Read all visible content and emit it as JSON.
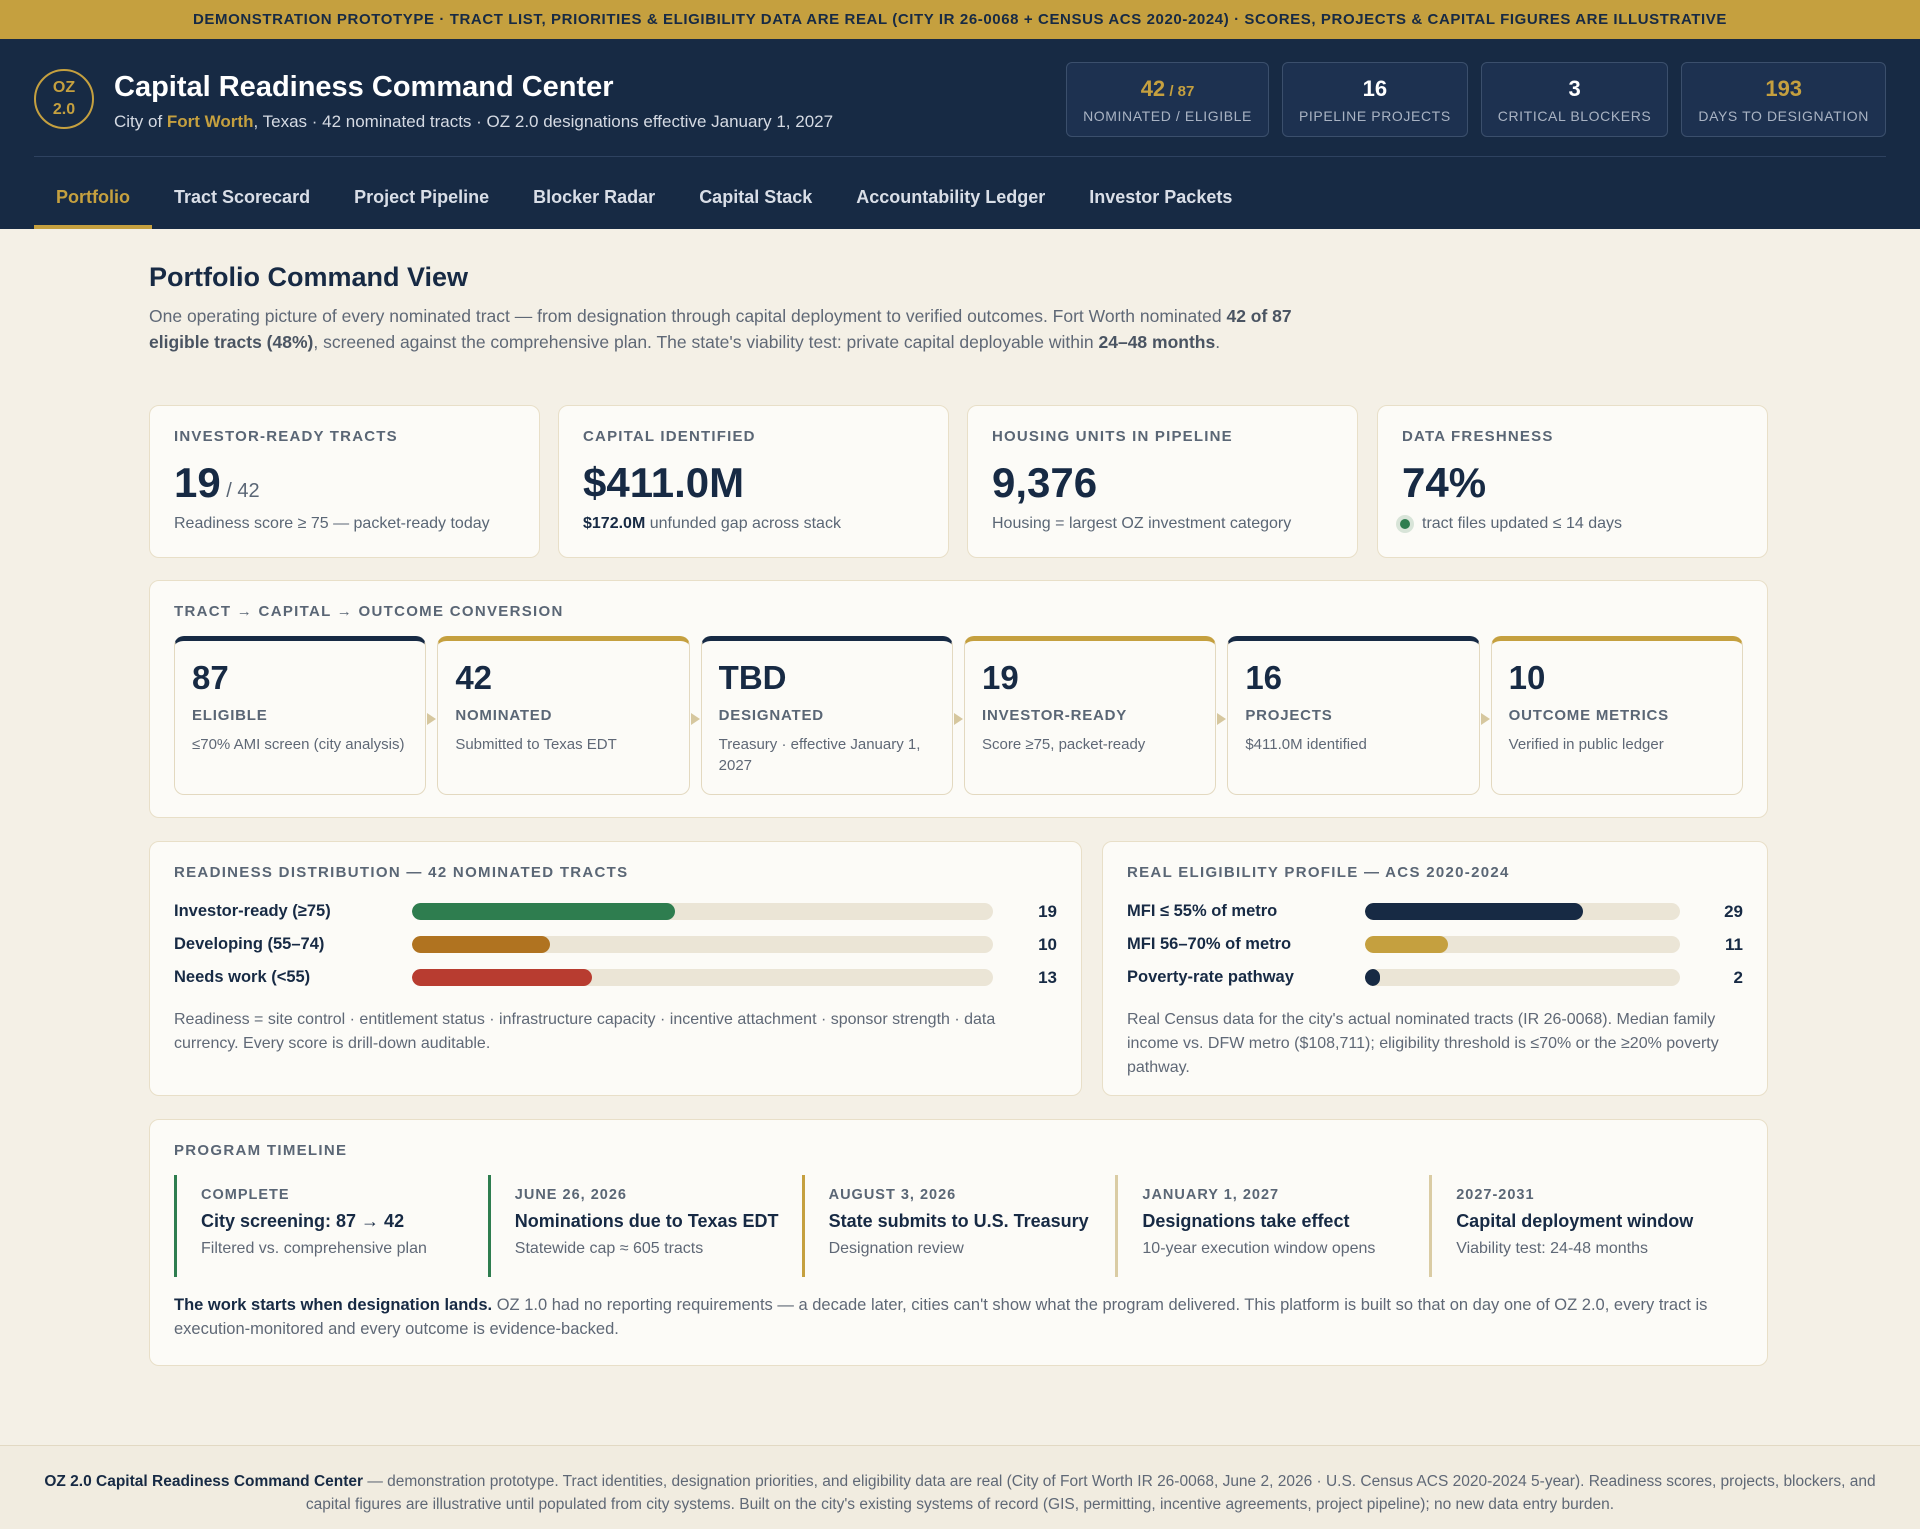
{
  "banner": "DEMONSTRATION PROTOTYPE · TRACT LIST, PRIORITIES & ELIGIBILITY DATA ARE REAL (CITY IR 26-0068 + CENSUS ACS 2020-2024) · SCORES, PROJECTS & CAPITAL FIGURES ARE ILLUSTRATIVE",
  "header": {
    "logo_line1": "OZ",
    "logo_line2": "2.0",
    "title": "Capital Readiness Command Center",
    "subtitle_prefix": "City of ",
    "subtitle_city": "Fort Worth",
    "subtitle_suffix": ", Texas · 42 nominated tracts · OZ 2.0 designations effective January 1, 2027",
    "stats": [
      {
        "value": "42",
        "suffix": " / 87",
        "label": "NOMINATED / ELIGIBLE"
      },
      {
        "value": "16",
        "label": "PIPELINE PROJECTS"
      },
      {
        "value": "3",
        "label": "CRITICAL BLOCKERS"
      },
      {
        "value": "193",
        "label": "DAYS TO DESIGNATION"
      }
    ]
  },
  "tabs": [
    "Portfolio",
    "Tract Scorecard",
    "Project Pipeline",
    "Blocker Radar",
    "Capital Stack",
    "Accountability Ledger",
    "Investor Packets"
  ],
  "page": {
    "title": "Portfolio Command View",
    "desc_1": "One operating picture of every nominated tract — from designation through capital deployment to verified outcomes. Fort Worth nominated ",
    "desc_b1": "42 of 87 eligible tracts (48%)",
    "desc_2": ", screened against the comprehensive plan. The state's viability test: private capital deployable within ",
    "desc_b2": "24–48 months",
    "desc_3": "."
  },
  "kpis": [
    {
      "label": "INVESTOR-READY TRACTS",
      "value": "19",
      "suffix": " / 42",
      "note": "Readiness score ≥ 75 — packet-ready today"
    },
    {
      "label": "CAPITAL IDENTIFIED",
      "value": "$411.0M",
      "note_bold": "$172.0M",
      "note": " unfunded gap across stack"
    },
    {
      "label": "HOUSING UNITS IN PIPELINE",
      "value": "9,376",
      "note": "Housing = largest OZ investment category"
    },
    {
      "label": "DATA FRESHNESS",
      "value": "74%",
      "note": "tract files updated ≤ 14 days"
    }
  ],
  "conversion": {
    "label": "TRACT → CAPITAL → OUTCOME CONVERSION",
    "stages": [
      {
        "value": "87",
        "label": "ELIGIBLE",
        "note": "≤70% AMI screen (city analysis)"
      },
      {
        "value": "42",
        "label": "NOMINATED",
        "note": "Submitted to Texas EDT"
      },
      {
        "value": "TBD",
        "label": "DESIGNATED",
        "note": "Treasury · effective January 1, 2027"
      },
      {
        "value": "19",
        "label": "INVESTOR-READY",
        "note": "Score ≥75, packet-ready"
      },
      {
        "value": "16",
        "label": "PROJECTS",
        "note": "$411.0M identified"
      },
      {
        "value": "10",
        "label": "OUTCOME METRICS",
        "note": "Verified in public ledger"
      }
    ]
  },
  "distribution": {
    "label": "READINESS DISTRIBUTION — 42 NOMINATED TRACTS",
    "total": 42,
    "rows": [
      {
        "label": "Investor-ready (≥75)",
        "value": 19,
        "color": "#2e7d4f"
      },
      {
        "label": "Developing (55–74)",
        "value": 10,
        "color": "#b07320"
      },
      {
        "label": "Needs work (<55)",
        "value": 13,
        "color": "#b83c30"
      }
    ],
    "note": "Readiness = site control · entitlement status · infrastructure capacity · incentive attachment · sponsor strength · data currency. Every score is drill-down auditable."
  },
  "eligibility": {
    "label": "REAL ELIGIBILITY PROFILE — ACS 2020-2024",
    "total": 42,
    "rows": [
      {
        "label": "MFI ≤ 55% of metro",
        "value": 29,
        "color": "#172a44"
      },
      {
        "label": "MFI 56–70% of metro",
        "value": 11,
        "color": "#c5a03f"
      },
      {
        "label": "Poverty-rate pathway",
        "value": 2,
        "color": "#172a44"
      }
    ],
    "note": "Real Census data for the city's actual nominated tracts (IR 26-0068). Median family income vs. DFW metro ($108,711); eligibility threshold is ≤70% or the ≥20% poverty pathway."
  },
  "timeline": {
    "label": "PROGRAM TIMELINE",
    "milestones": [
      {
        "date": "COMPLETE",
        "title": "City screening: 87 → 42",
        "note": "Filtered vs. comprehensive plan"
      },
      {
        "date": "JUNE 26, 2026",
        "title": "Nominations due to Texas EDT",
        "note": "Statewide cap ≈ 605 tracts"
      },
      {
        "date": "AUGUST 3, 2026",
        "title": "State submits to U.S. Treasury",
        "note": "Designation review"
      },
      {
        "date": "JANUARY 1, 2027",
        "title": "Designations take effect",
        "note": "10-year execution window opens"
      },
      {
        "date": "2027-2031",
        "title": "Capital deployment window",
        "note": "Viability test: 24-48 months"
      }
    ],
    "note_bold": "The work starts when designation lands.",
    "note": " OZ 1.0 had no reporting requirements — a decade later, cities can't show what the program delivered. This platform is built so that on day one of OZ 2.0, every tract is execution-monitored and every outcome is evidence-backed."
  },
  "footer": {
    "bold": "OZ 2.0 Capital Readiness Command Center",
    "text": " — demonstration prototype. Tract identities, designation priorities, and eligibility data are real (City of Fort Worth IR 26-0068, June 2, 2026 · U.S. Census ACS 2020-2024 5-year). Readiness scores, projects, blockers, and capital figures are illustrative until populated from city systems. Built on the city's existing systems of record (GIS, permitting, incentive agreements, project pipeline); no new data entry burden."
  }
}
